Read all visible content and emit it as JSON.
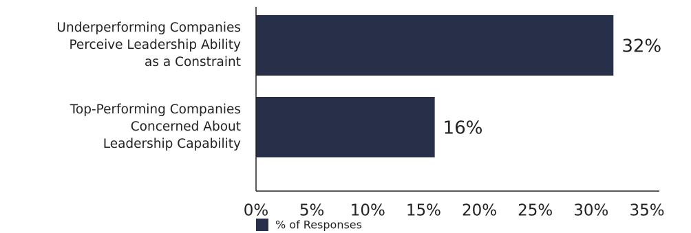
{
  "chart_data": {
    "type": "hbar",
    "categories": [
      "Underperforming Companies\nPerceive Leadership Ability\nas a Constraint",
      "Top-Performing Companies\nConcerned About\nLeadership Capability"
    ],
    "series": [
      {
        "name": "% of Responses",
        "color": "#283049",
        "values": [
          32,
          16
        ],
        "value_labels": [
          "32%",
          "16%"
        ]
      }
    ],
    "xlim": [
      0,
      35
    ],
    "xticks": [
      {
        "value": 0,
        "label": "0%"
      },
      {
        "value": 5,
        "label": "5%"
      },
      {
        "value": 10,
        "label": "10%"
      },
      {
        "value": 15,
        "label": "15%"
      },
      {
        "value": 20,
        "label": "20%"
      },
      {
        "value": 25,
        "label": "25%"
      },
      {
        "value": 30,
        "label": "30%"
      },
      {
        "value": 35,
        "label": "35%"
      }
    ],
    "grid": false,
    "legend": "bottom"
  }
}
